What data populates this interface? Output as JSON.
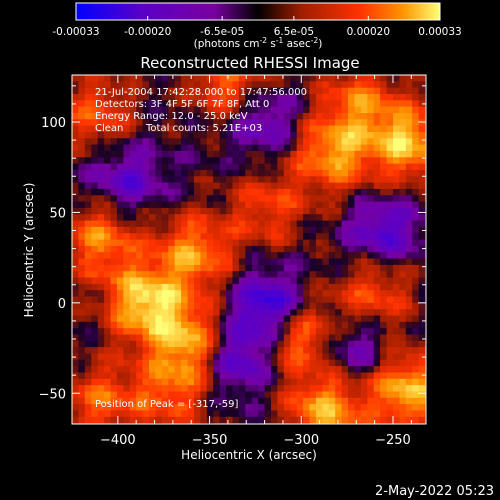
{
  "colorbar": {
    "ticks": [
      "-0.00033",
      "-0.00020",
      "-6.5e-05",
      "6.5e-05",
      "0.00020",
      "0.00033"
    ],
    "tick_values": [
      -0.00033,
      -0.0002,
      -6.5e-05,
      6.5e-05,
      0.0002,
      0.00033
    ],
    "range": [
      -0.00033,
      0.00033
    ],
    "units_text": "(photons cm",
    "units_sup1": "-2",
    "units_mid": " s",
    "units_sup2": "-1",
    "units_end": " asec",
    "units_sup3": "-2",
    "units_close": ")",
    "colors": [
      "#0000ff",
      "#5a00c8",
      "#7800a0",
      "#000000",
      "#a01e00",
      "#ff3200",
      "#ff9600",
      "#ffff78"
    ]
  },
  "chart_data": {
    "type": "heatmap",
    "title": "Reconstructed RHESSI Image",
    "xlabel": "Heliocentric X (arcsec)",
    "ylabel": "Heliocentric Y (arcsec)",
    "xlim": [
      -425,
      -232
    ],
    "ylim": [
      -67,
      126
    ],
    "xticks": [
      -400,
      -350,
      -300,
      -250
    ],
    "yticks": [
      -50,
      0,
      50,
      100
    ],
    "xtick_labels": [
      "−400",
      "−350",
      "−300",
      "−250"
    ],
    "ytick_labels": [
      "−50",
      "0",
      "50",
      "100"
    ],
    "peak_position": [
      -317,
      -59
    ],
    "hot_regions": [
      {
        "x": -412,
        "y": 105,
        "level": 0.55
      },
      {
        "x": -340,
        "y": 123,
        "level": 0.65
      },
      {
        "x": -283,
        "y": 82,
        "level": 0.8
      },
      {
        "x": -242,
        "y": 88,
        "level": 0.9
      },
      {
        "x": -268,
        "y": 112,
        "level": 0.6
      },
      {
        "x": -358,
        "y": 28,
        "level": 0.75
      },
      {
        "x": -385,
        "y": 0,
        "level": 1.0
      },
      {
        "x": -360,
        "y": -22,
        "level": 0.8
      },
      {
        "x": -410,
        "y": 35,
        "level": 0.7
      },
      {
        "x": -302,
        "y": -18,
        "level": 0.7
      },
      {
        "x": -318,
        "y": 52,
        "level": 0.5
      },
      {
        "x": -260,
        "y": 5,
        "level": 0.55
      },
      {
        "x": -242,
        "y": -48,
        "level": 0.9
      },
      {
        "x": -287,
        "y": -60,
        "level": 0.85
      },
      {
        "x": -410,
        "y": -55,
        "level": 0.6
      },
      {
        "x": -372,
        "y": -50,
        "level": 0.55
      }
    ],
    "cold_regions": [
      {
        "x": -318,
        "y": -2,
        "level": 1.0
      },
      {
        "x": -335,
        "y": -30,
        "level": 0.8
      },
      {
        "x": -255,
        "y": 40,
        "level": 0.7
      },
      {
        "x": -395,
        "y": 68,
        "level": 0.6
      },
      {
        "x": -320,
        "y": 100,
        "level": 0.55
      },
      {
        "x": -270,
        "y": -25,
        "level": 0.5
      }
    ]
  },
  "annotations": {
    "time": "21-Jul-2004 17:42:28.000 to 17:47:56.000",
    "detectors": "Detectors: 3F 4F 5F 6F 7F 8F, Att 0",
    "energy": "Energy Range: 12.0 - 25.0 keV",
    "method": "Clean",
    "counts": "Total counts: 5.21E+03",
    "peak": "Position of Peak = [-317,-59]"
  },
  "footer": {
    "date": "2-May-2022 05:23"
  }
}
